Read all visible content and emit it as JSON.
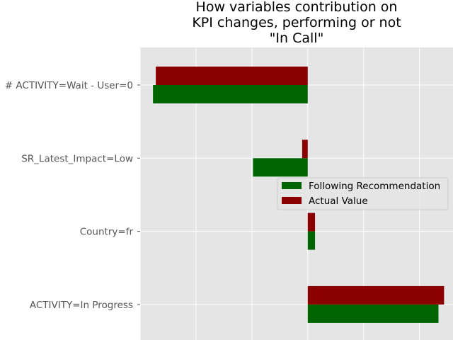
{
  "chart_data": {
    "type": "bar",
    "orientation": "horizontal",
    "title_lines": [
      "How variables contribution on",
      "KPI changes, performing or not",
      "\"In Call\""
    ],
    "categories": [
      "# ACTIVITY=Wait - User=0",
      "SR_Latest_Impact=Low",
      "Country=fr",
      "ACTIVITY=In Progress"
    ],
    "series": [
      {
        "name": "Following Recommendation",
        "color": "#006400",
        "values": [
          -2.77,
          -0.98,
          0.13,
          2.34
        ]
      },
      {
        "name": "Actual Value",
        "color": "#8b0000",
        "values": [
          -2.72,
          -0.1,
          0.13,
          2.44
        ]
      }
    ],
    "xlim": [
      -3.0,
      2.6
    ],
    "x_gridlines": [
      -3,
      -2,
      -1,
      0,
      1,
      2
    ],
    "grid": true,
    "background": "#e5e5e5",
    "legend_position": "center-right"
  }
}
